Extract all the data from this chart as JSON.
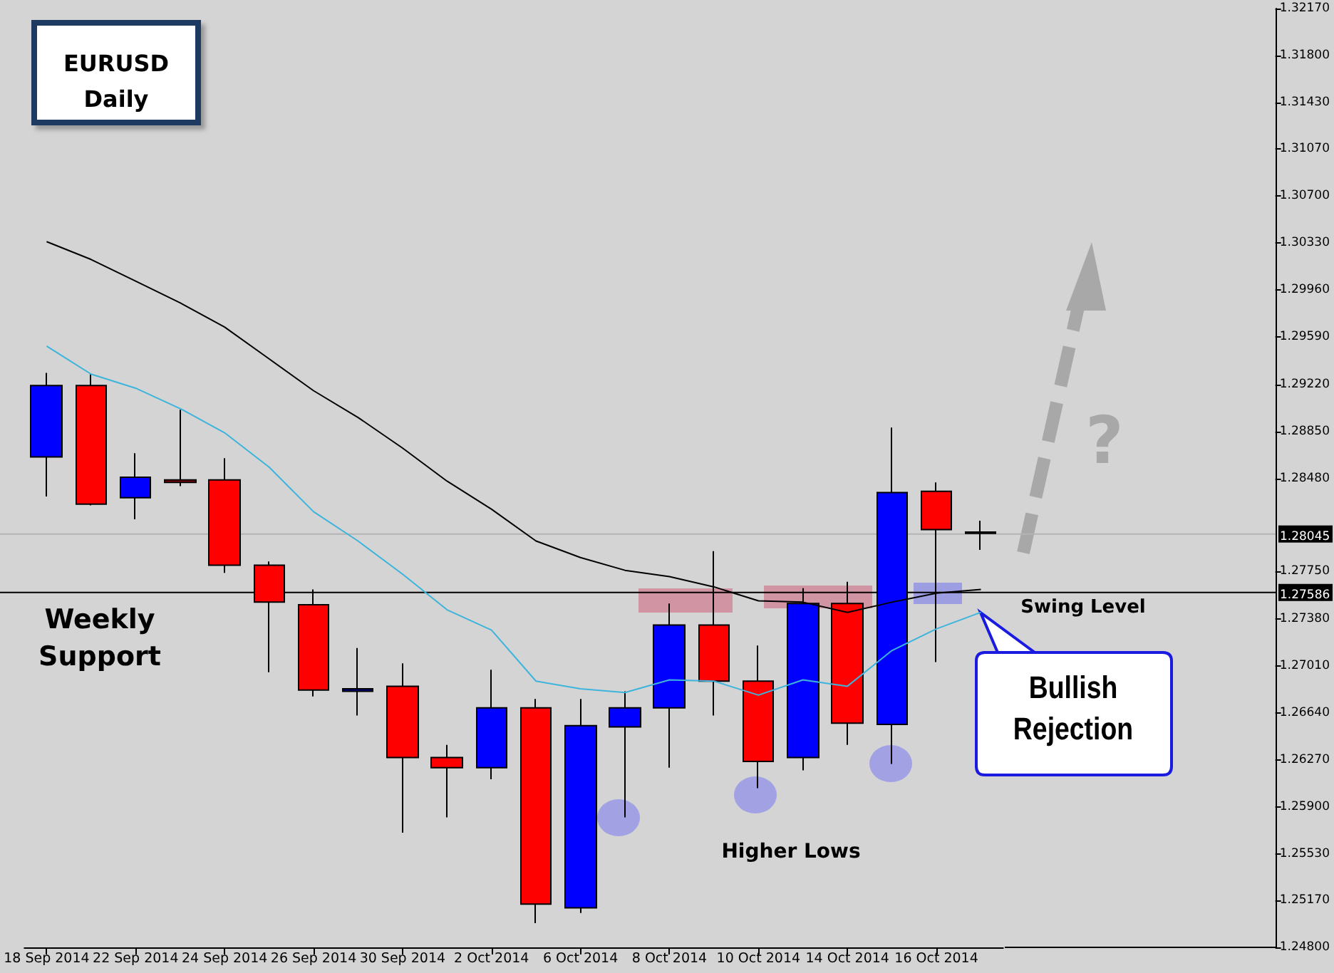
{
  "chart_data": {
    "type": "candlestick",
    "title": "EURUSD Daily",
    "categories": [
      "18 Sep 2014",
      null,
      "22 Sep 2014",
      null,
      "24 Sep 2014",
      null,
      "26 Sep 2014",
      null,
      "30 Sep 2014",
      null,
      "2 Oct 2014",
      null,
      "6 Oct 2014",
      null,
      "8 Oct 2014",
      null,
      "10 Oct 2014",
      null,
      "14 Oct 2014",
      null,
      "16 Oct 2014",
      null
    ],
    "ohlc": [
      [
        1.2865,
        1.2931,
        1.2834,
        1.2921
      ],
      [
        1.2921,
        1.293,
        1.2827,
        1.2828
      ],
      [
        1.2833,
        1.2868,
        1.2816,
        1.2849
      ],
      [
        1.2847,
        1.2902,
        1.2842,
        1.2845
      ],
      [
        1.2847,
        1.2864,
        1.2774,
        1.278
      ],
      [
        1.278,
        1.2783,
        1.2696,
        1.2751
      ],
      [
        1.2749,
        1.2761,
        1.2677,
        1.2682
      ],
      [
        1.2681,
        1.2715,
        1.2662,
        1.2683
      ],
      [
        1.2685,
        1.2703,
        1.257,
        1.2629
      ],
      [
        1.2629,
        1.2639,
        1.2582,
        1.2621
      ],
      [
        1.2621,
        1.2698,
        1.2612,
        1.2668
      ],
      [
        1.2668,
        1.2675,
        1.2499,
        1.2514
      ],
      [
        1.2511,
        1.2675,
        1.2507,
        1.2654
      ],
      [
        1.2653,
        1.2681,
        1.2582,
        1.2668
      ],
      [
        1.2668,
        1.275,
        1.2621,
        1.2733
      ],
      [
        1.2733,
        1.2791,
        1.2662,
        1.2689
      ],
      [
        1.2689,
        1.2717,
        1.2605,
        1.2626
      ],
      [
        1.2629,
        1.2762,
        1.2619,
        1.275
      ],
      [
        1.275,
        1.2767,
        1.2639,
        1.2656
      ],
      [
        1.2655,
        1.2888,
        1.2624,
        1.2837
      ],
      [
        1.2838,
        1.2845,
        1.2704,
        1.2808
      ],
      [
        1.2806,
        1.2815,
        1.2792,
        1.2805
      ]
    ],
    "colors": [
      "#0000ff",
      "#ff0000",
      "#0000ff",
      "#8b0000",
      "#ff0000",
      "#ff0000",
      "#ff0000",
      "#00008b",
      "#ff0000",
      "#ff0000",
      "#0000ff",
      "#ff0000",
      "#0000ff",
      "#0000ff",
      "#0000ff",
      "#ff0000",
      "#ff0000",
      "#0000ff",
      "#ff0000",
      "#0000ff",
      "#ff0000",
      "#8b0000"
    ],
    "series": [
      {
        "type": "line",
        "color": "#000000",
        "values": [
          1.3034,
          1.302,
          1.3003,
          1.2986,
          1.2967,
          1.2942,
          1.2917,
          1.2896,
          1.2872,
          1.2846,
          1.2824,
          1.2799,
          1.2786,
          1.2776,
          1.2771,
          1.2763,
          1.2752,
          1.2751,
          1.2743,
          1.2751,
          1.2758,
          1.2761
        ]
      },
      {
        "type": "line",
        "color": "#3cb4dc",
        "values": [
          1.2952,
          1.293,
          1.2919,
          1.2903,
          1.2884,
          1.2857,
          1.2822,
          1.2799,
          1.2773,
          1.2745,
          1.2729,
          1.2689,
          1.2683,
          1.268,
          1.269,
          1.2689,
          1.2678,
          1.269,
          1.2685,
          1.2713,
          1.273,
          1.2743
        ]
      }
    ],
    "marker": "none",
    "ylim": [
      1.248,
      1.3217
    ],
    "yticks": [
      {
        "value": 1.3217,
        "label": "1.32170"
      },
      {
        "value": 1.318,
        "label": "1.31800"
      },
      {
        "value": 1.3143,
        "label": "1.31430"
      },
      {
        "value": 1.3107,
        "label": "1.31070"
      },
      {
        "value": 1.307,
        "label": "1.30700"
      },
      {
        "value": 1.3033,
        "label": "1.30330"
      },
      {
        "value": 1.2996,
        "label": "1.29960"
      },
      {
        "value": 1.2959,
        "label": "1.29590"
      },
      {
        "value": 1.2922,
        "label": "1.29220"
      },
      {
        "value": 1.2885,
        "label": "1.28850"
      },
      {
        "value": 1.2848,
        "label": "1.28480"
      },
      {
        "value": 1.2775,
        "label": "1.27750"
      },
      {
        "value": 1.2738,
        "label": "1.27380"
      },
      {
        "value": 1.2701,
        "label": "1.27010"
      },
      {
        "value": 1.2664,
        "label": "1.26640"
      },
      {
        "value": 1.2627,
        "label": "1.26270"
      },
      {
        "value": 1.259,
        "label": "1.25900"
      },
      {
        "value": 1.2553,
        "label": "1.25530"
      },
      {
        "value": 1.2517,
        "label": "1.25170"
      },
      {
        "value": 1.248,
        "label": "1.24800"
      }
    ],
    "ref_lines": [
      {
        "axis": "y",
        "value": 1.27586,
        "label": "1.27586",
        "color": "#000000"
      },
      {
        "axis": "y",
        "value": 1.28045,
        "label": "1.28045",
        "color": "#b4b4b4"
      }
    ],
    "annotations": [
      "Weekly Support",
      "Higher Lows",
      "Bullish Rejection",
      "?",
      {
        "text": "Swing Level",
        "y": 1.27586
      }
    ]
  }
}
